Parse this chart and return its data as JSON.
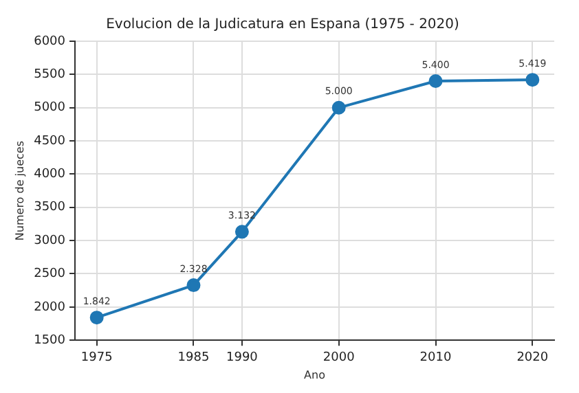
{
  "chart_data": {
    "type": "line",
    "title": "Evolucion de la Judicatura en Espana (1975 - 2020)",
    "xlabel": "Ano",
    "ylabel": "Numero de jueces",
    "x": [
      1975,
      1985,
      1990,
      2000,
      2010,
      2020
    ],
    "series": [
      {
        "color": "#1f77b4",
        "values": [
          1842,
          2328,
          3132,
          5000,
          5400,
          5419
        ],
        "value_labels": [
          "1.842",
          "2.328",
          "3.132",
          "5.000",
          "5.400",
          "5.419"
        ]
      }
    ],
    "xlim": [
      1972.75,
      2022.25
    ],
    "xticks": [
      1975,
      1985,
      1990,
      2000,
      2010,
      2020
    ],
    "ylim": [
      1500,
      6000
    ],
    "yticks": [
      1500,
      2000,
      2500,
      3000,
      3500,
      4000,
      4500,
      5000,
      5500,
      6000
    ],
    "grid": true,
    "marker": "circle",
    "line_style": "solid",
    "legend": false
  }
}
